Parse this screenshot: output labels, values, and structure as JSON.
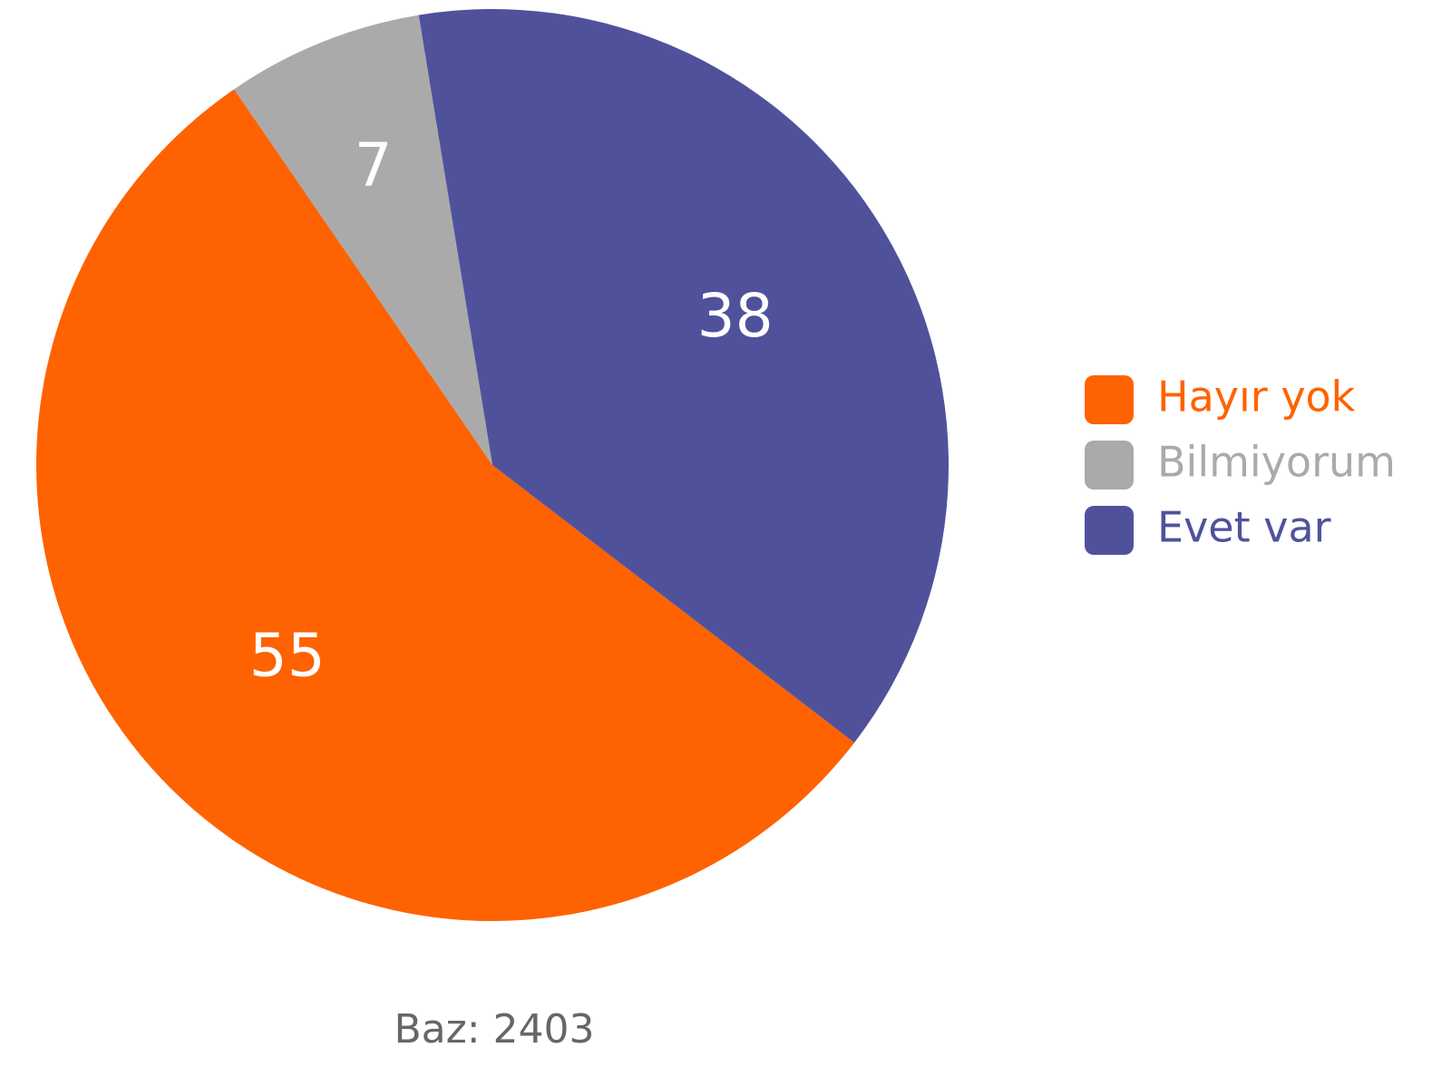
{
  "chart_data": {
    "type": "pie",
    "categories": [
      "Hayır yok",
      "Bilmiyorum",
      "Evet var"
    ],
    "values": [
      55,
      7,
      38
    ],
    "colors": [
      "#ff6200",
      "#aaaaaa",
      "#4f529b"
    ],
    "legend": "right",
    "note": "Baz: 2403"
  }
}
